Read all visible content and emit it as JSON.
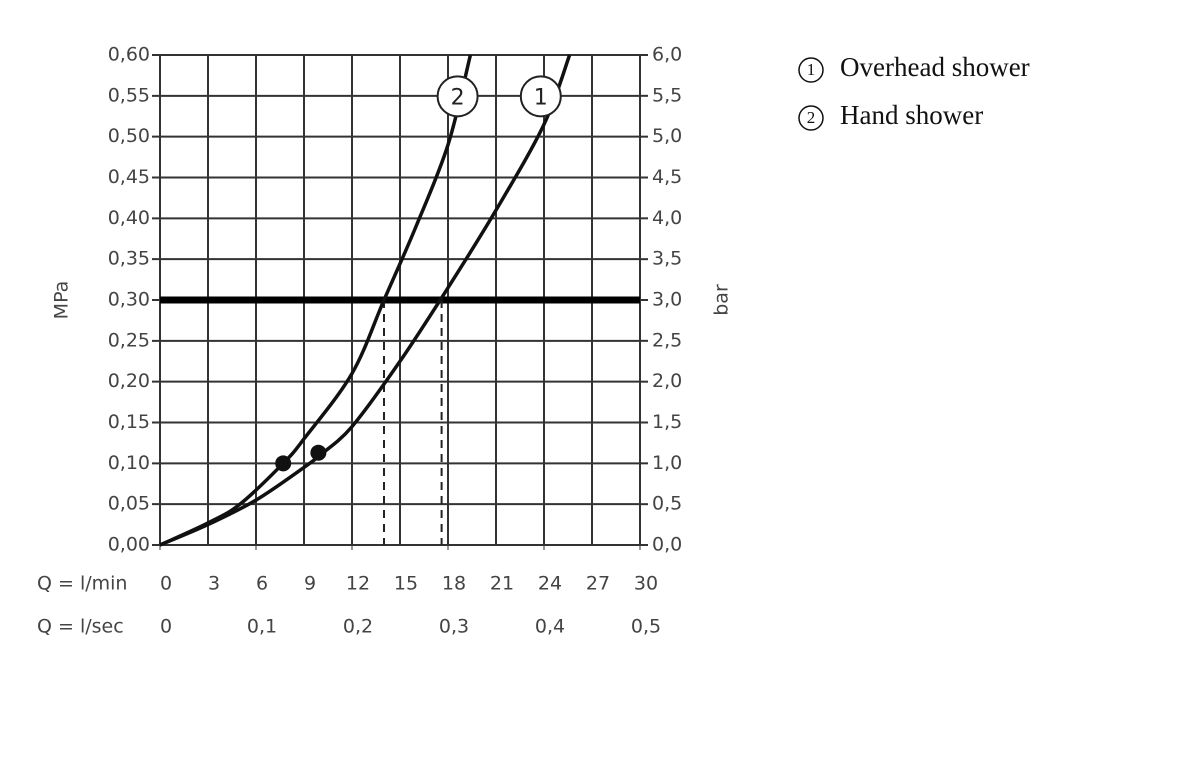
{
  "chart_data": {
    "type": "line",
    "xlabel": "Q = l/min",
    "x2label": "Q = l/sec",
    "ylabel": "MPa",
    "y2label": "bar",
    "xlim": [
      0,
      30
    ],
    "xticks": [
      0,
      3,
      6,
      9,
      12,
      15,
      18,
      21,
      24,
      27,
      30
    ],
    "x2lim": [
      0,
      0.5
    ],
    "x2ticks": [
      0,
      {
        "value": 0.1,
        "label": "0,1"
      },
      {
        "value": 0.2,
        "label": "0,2"
      },
      {
        "value": 0.3,
        "label": "0,3"
      },
      {
        "value": 0.4,
        "label": "0,4"
      },
      {
        "value": 0.5,
        "label": "0,5"
      }
    ],
    "ylim": [
      0,
      0.6
    ],
    "yticks": [
      {
        "value": 0,
        "label": "0,00"
      },
      {
        "value": 0.05,
        "label": "0,05"
      },
      {
        "value": 0.1,
        "label": "0,10"
      },
      {
        "value": 0.15,
        "label": "0,15"
      },
      {
        "value": 0.2,
        "label": "0,20"
      },
      {
        "value": 0.25,
        "label": "0,25"
      },
      {
        "value": 0.3,
        "label": "0,30"
      },
      {
        "value": 0.35,
        "label": "0,35"
      },
      {
        "value": 0.4,
        "label": "0,40"
      },
      {
        "value": 0.45,
        "label": "0,45"
      },
      {
        "value": 0.5,
        "label": "0,50"
      },
      {
        "value": 0.55,
        "label": "0,55"
      },
      {
        "value": 0.6,
        "label": "0,60"
      }
    ],
    "y2lim": [
      0,
      6
    ],
    "y2ticks": [
      {
        "value": 0,
        "label": "0,0"
      },
      {
        "value": 0.5,
        "label": "0,5"
      },
      {
        "value": 1,
        "label": "1,0"
      },
      {
        "value": 1.5,
        "label": "1,5"
      },
      {
        "value": 2,
        "label": "2,0"
      },
      {
        "value": 2.5,
        "label": "2,5"
      },
      {
        "value": 3,
        "label": "3,0"
      },
      {
        "value": 3.5,
        "label": "3,5"
      },
      {
        "value": 4,
        "label": "4,0"
      },
      {
        "value": 4.5,
        "label": "4,5"
      },
      {
        "value": 5,
        "label": "5,0"
      },
      {
        "value": 5.5,
        "label": "5,5"
      },
      {
        "value": 6,
        "label": "6,0"
      }
    ],
    "grid": true,
    "reference_y": 0.3,
    "crossings_x": [
      14.0,
      17.6
    ],
    "series": [
      {
        "name": "Overhead shower",
        "marker": "1",
        "color": "#111",
        "x": [
          0,
          3,
          6,
          9,
          10,
          12,
          15,
          18,
          21,
          24,
          25.6
        ],
        "values": [
          0,
          0.025,
          0.055,
          0.095,
          0.11,
          0.145,
          0.225,
          0.315,
          0.41,
          0.515,
          0.6
        ],
        "point": [
          9.9,
          0.113
        ],
        "label_at": [
          23.8,
          0.52
        ]
      },
      {
        "name": "Hand shower",
        "marker": "2",
        "color": "#111",
        "x": [
          0,
          3,
          5,
          7.7,
          9,
          12,
          14,
          16,
          18,
          19.4
        ],
        "values": [
          0,
          0.027,
          0.05,
          0.1,
          0.13,
          0.21,
          0.3,
          0.39,
          0.49,
          0.6
        ],
        "point": [
          7.7,
          0.1
        ],
        "label_at": [
          18.6,
          0.52
        ]
      }
    ]
  }
}
